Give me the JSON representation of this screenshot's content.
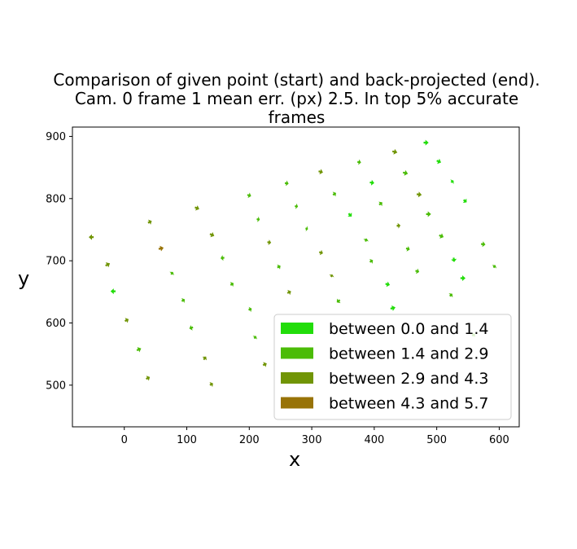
{
  "chart_data": {
    "type": "quiver",
    "title_lines": [
      "Comparison of given point (start) and back-projected (end).",
      "Cam. 0 frame 1 mean err. (px) 2.5. In top 5% accurate",
      "frames"
    ],
    "xlabel": "x",
    "ylabel": "y",
    "xlim": [
      -83,
      632
    ],
    "ylim": [
      433,
      915
    ],
    "xticks": [
      0,
      100,
      200,
      300,
      400,
      500,
      600
    ],
    "yticks": [
      500,
      600,
      700,
      800,
      900
    ],
    "legend_position": "lower-right",
    "legend": [
      {
        "label": "between 0.0 and 1.4",
        "color": "#22dd0a"
      },
      {
        "label": "between 1.4 and 2.9",
        "color": "#4bbc07"
      },
      {
        "label": "between 2.9 and 4.3",
        "color": "#719506"
      },
      {
        "label": "between 4.3 and 5.7",
        "color": "#987307"
      }
    ],
    "series": [
      {
        "name": "between 0.0 and 1.4",
        "color": "#22dd0a",
        "arrows": [
          [
            -14,
            651,
            -8,
            0
          ],
          [
            359,
            776,
            5,
            -5
          ],
          [
            418,
            663,
            7,
            -2
          ],
          [
            426,
            623,
            8,
            2
          ],
          [
            479,
            890,
            8,
            0
          ],
          [
            500,
            861,
            7,
            -3
          ],
          [
            523,
            826,
            4,
            3
          ],
          [
            527,
            705,
            1,
            -7
          ],
          [
            538,
            672,
            8,
            0
          ],
          [
            543,
            798,
            5,
            -4
          ],
          [
            393,
            826,
            7,
            -1
          ]
        ]
      },
      {
        "name": "between 1.4 and 2.9",
        "color": "#4bbc07",
        "arrows": [
          [
            20,
            556,
            7,
            3
          ],
          [
            92,
            635,
            5,
            3
          ],
          [
            110,
            593,
            -6,
            -2
          ],
          [
            75,
            678,
            3,
            4
          ],
          [
            170,
            661,
            5,
            3
          ],
          [
            160,
            705,
            -6,
            -1
          ],
          [
            197,
            806,
            6,
            -2
          ],
          [
            212,
            767,
            5,
            -1
          ],
          [
            199,
            621,
            5,
            2
          ],
          [
            208,
            575,
            3,
            4
          ],
          [
            245,
            689,
            5,
            3
          ],
          [
            257,
            825,
            6,
            -1
          ],
          [
            273,
            788,
            5,
            -1
          ],
          [
            290,
            752,
            4,
            -1
          ],
          [
            334,
            806,
            5,
            3
          ],
          [
            345,
            637,
            -5,
            -4
          ],
          [
            393,
            698,
            5,
            3
          ],
          [
            373,
            859,
            6,
            -1
          ],
          [
            386,
            731,
            2,
            5
          ],
          [
            408,
            790,
            5,
            4
          ],
          [
            446,
            842,
            8,
            -2
          ],
          [
            451,
            720,
            6,
            -2
          ],
          [
            466,
            684,
            6,
            -2
          ],
          [
            483,
            775,
            8,
            0
          ],
          [
            504,
            741,
            7,
            -3
          ],
          [
            521,
            643,
            4,
            4
          ],
          [
            557,
            579,
            4,
            4
          ],
          [
            571,
            727,
            7,
            -1
          ],
          [
            591,
            689,
            3,
            4
          ]
        ]
      },
      {
        "name": "between 2.9 and 4.3",
        "color": "#719506",
        "arrows": [
          [
            -49,
            738,
            -8,
            0
          ],
          [
            -30,
            692,
            7,
            4
          ],
          [
            1,
            603,
            6,
            3
          ],
          [
            35,
            510,
            6,
            3
          ],
          [
            38,
            761,
            6,
            3
          ],
          [
            113,
            786,
            7,
            -3
          ],
          [
            127,
            541,
            4,
            5
          ],
          [
            137,
            500,
            5,
            3
          ],
          [
            137,
            743,
            7,
            -3
          ],
          [
            222,
            532,
            6,
            3
          ],
          [
            229,
            730,
            6,
            -1
          ],
          [
            261,
            648,
            6,
            3
          ],
          [
            311,
            844,
            7,
            -2
          ],
          [
            312,
            714,
            6,
            -2
          ],
          [
            331,
            674,
            2,
            4
          ],
          [
            429,
            876,
            8,
            -2
          ],
          [
            436,
            756,
            6,
            1
          ],
          [
            468,
            807,
            8,
            -1
          ]
        ]
      },
      {
        "name": "between 4.3 and 5.7",
        "color": "#987307",
        "arrows": [
          [
            55,
            719,
            8,
            2
          ]
        ]
      }
    ]
  }
}
